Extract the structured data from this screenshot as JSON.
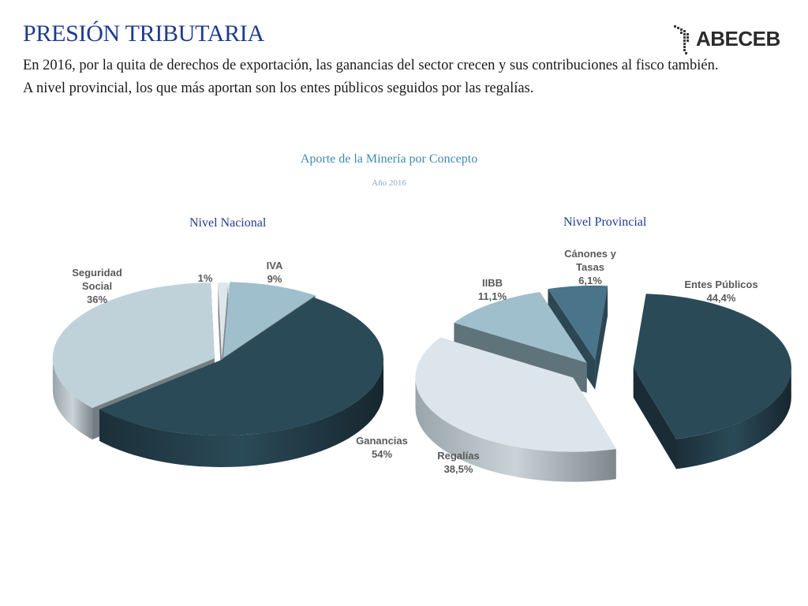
{
  "header": {
    "title": "PRESIÓN TRIBUTARIA",
    "subtitle_line1": "En 2016, por la quita de derechos de exportación, las ganancias del sector crecen y sus contribuciones al fisco también.",
    "subtitle_line2": "A nivel provincial, los que más aportan son los entes públicos seguidos por las regalías.",
    "logo_text": "ABECEB"
  },
  "chart_data": [
    {
      "type": "pie",
      "title": "Aporte de la Minería por Concepto",
      "subtitle": "Año 2016",
      "pie_title": "Nivel Nacional",
      "slices": [
        {
          "name": "IVA",
          "value": 9,
          "label": "9%",
          "color": "#9fbfcc"
        },
        {
          "name": "Ganancias",
          "value": 54,
          "label": "54%",
          "color": "#2b4a58"
        },
        {
          "name": "Seguridad Social",
          "value": 36,
          "label": "36%",
          "color": "#bfd2da"
        },
        {
          "name": "",
          "value": 1,
          "label": "1%",
          "color": "#dde6ea"
        }
      ]
    },
    {
      "type": "pie",
      "pie_title": "Nivel Provincial",
      "slices": [
        {
          "name": "Entes Públicos",
          "value": 44.4,
          "label": "44,4%",
          "color": "#2b4a58"
        },
        {
          "name": "Regalías",
          "value": 38.5,
          "label": "38,5%",
          "color": "#dce5eb"
        },
        {
          "name": "IIBB",
          "value": 11.1,
          "label": "11,1%",
          "color": "#9fbfcc"
        },
        {
          "name": "Cánones y Tasas",
          "value": 6.1,
          "label": "6,1%",
          "color": "#4a7489"
        }
      ]
    }
  ]
}
